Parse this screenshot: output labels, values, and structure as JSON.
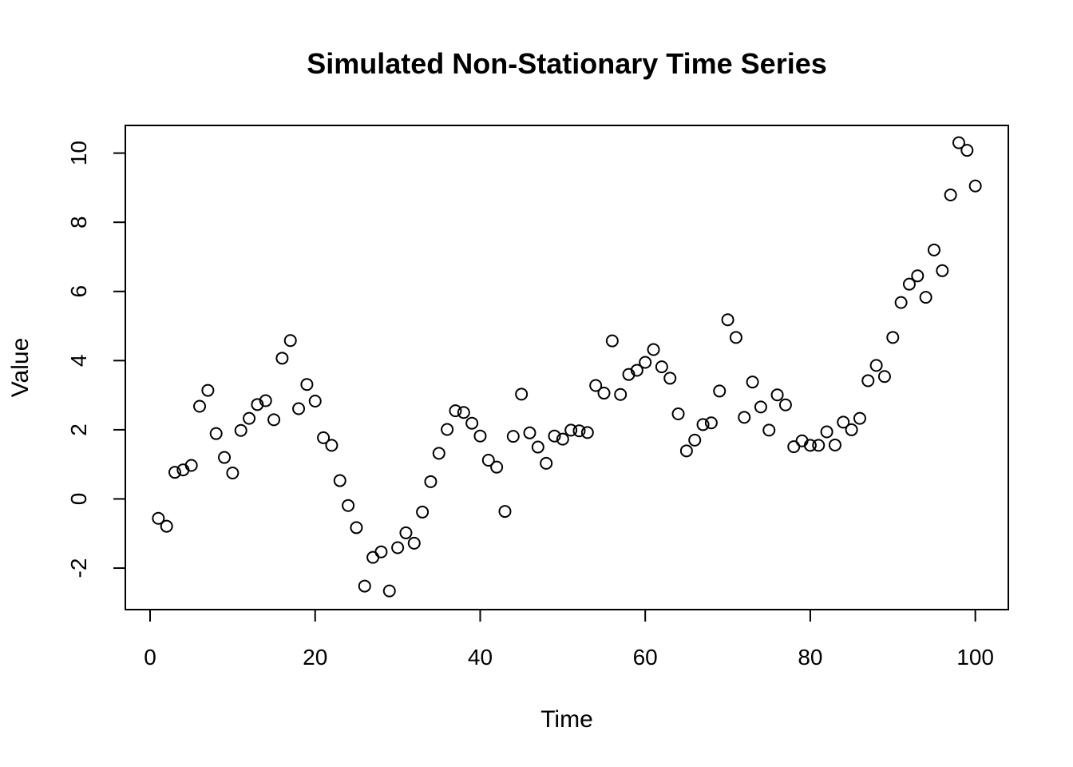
{
  "chart_data": {
    "type": "scatter",
    "title": "Simulated Non-Stationary Time Series",
    "xlabel": "Time",
    "ylabel": "Value",
    "xlim": [
      -3,
      104
    ],
    "ylim": [
      -3.2,
      10.8
    ],
    "grid": false,
    "marker": "open-circle",
    "x_ticks": [
      0,
      20,
      40,
      60,
      80,
      100
    ],
    "x_tick_labels": [
      "0",
      "20",
      "40",
      "60",
      "80",
      "100"
    ],
    "y_ticks": [
      -2,
      0,
      2,
      4,
      6,
      8,
      10
    ],
    "y_tick_labels": [
      "-2",
      "0",
      "2",
      "4",
      "6",
      "8",
      "10"
    ],
    "x": [
      1,
      2,
      3,
      4,
      5,
      6,
      7,
      8,
      9,
      10,
      11,
      12,
      13,
      14,
      15,
      16,
      17,
      18,
      19,
      20,
      21,
      22,
      23,
      24,
      25,
      26,
      27,
      28,
      29,
      30,
      31,
      32,
      33,
      34,
      35,
      36,
      37,
      38,
      39,
      40,
      41,
      42,
      43,
      44,
      45,
      46,
      47,
      48,
      49,
      50,
      51,
      52,
      53,
      54,
      55,
      56,
      57,
      58,
      59,
      60,
      61,
      62,
      63,
      64,
      65,
      66,
      67,
      68,
      69,
      70,
      71,
      72,
      73,
      74,
      75,
      76,
      77,
      78,
      79,
      80,
      81,
      82,
      83,
      84,
      85,
      86,
      87,
      88,
      89,
      90,
      91,
      92,
      93,
      94,
      95,
      96,
      97,
      98,
      99,
      100
    ],
    "y": [
      -0.56,
      -0.79,
      0.77,
      0.84,
      0.97,
      2.68,
      3.14,
      1.89,
      1.2,
      0.75,
      1.98,
      2.33,
      2.73,
      2.84,
      2.29,
      4.07,
      4.58,
      2.61,
      3.31,
      2.83,
      1.77,
      1.55,
      0.53,
      -0.19,
      -0.83,
      -2.52,
      -1.69,
      -1.53,
      -2.66,
      -1.41,
      -0.98,
      -1.28,
      -0.38,
      0.5,
      1.32,
      2.01,
      2.55,
      2.5,
      2.19,
      1.82,
      1.12,
      0.92,
      -0.36,
      1.81,
      3.03,
      1.91,
      1.5,
      1.03,
      1.82,
      1.73,
      1.99,
      1.97,
      1.92,
      3.28,
      3.06,
      4.57,
      3.02,
      3.6,
      3.72,
      3.95,
      4.32,
      3.82,
      3.49,
      2.46,
      1.39,
      1.7,
      2.15,
      2.2,
      3.12,
      5.18,
      4.67,
      2.36,
      3.38,
      2.66,
      1.99,
      3.01,
      2.72,
      1.51,
      1.68,
      1.55,
      1.55,
      1.94,
      1.56,
      2.22,
      2.0,
      2.33,
      3.42,
      3.86,
      3.54,
      4.67,
      5.68,
      6.21,
      6.45,
      5.83,
      7.2,
      6.6,
      8.79,
      10.3,
      10.08,
      9.05
    ]
  }
}
